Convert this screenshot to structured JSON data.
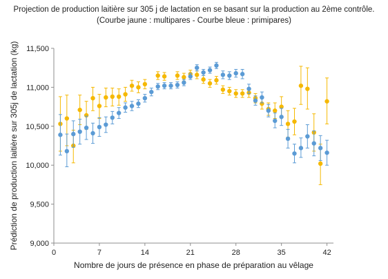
{
  "chart_data": {
    "type": "scatter",
    "title": "Projection de production laitière sur 305 j de lactation en se basant sur la production au 2ème contrôle.",
    "subtitle": "(Courbe jaune : multipares - Courbe bleue : primipares)",
    "xlabel": "Nombre de jours de présence en phase de préparation au vêlage",
    "ylabel": "Prédiction de production laitière sur 305j de lactation (kg)",
    "xlim": [
      0,
      43
    ],
    "ylim": [
      9000,
      11500
    ],
    "x_ticks": [
      0,
      7,
      14,
      21,
      28,
      35,
      42
    ],
    "y_ticks": [
      9000,
      9500,
      10000,
      10500,
      11000,
      11500
    ],
    "y_tick_labels": [
      "9,000",
      "9,500",
      "10,000",
      "10,500",
      "11,000",
      "11,500"
    ],
    "grid": false,
    "colors": {
      "multipares": "#f5b800",
      "primipares": "#5b9bd5",
      "axis": "#8c8c8c"
    },
    "series": [
      {
        "key": "multipares",
        "points": [
          {
            "x": 1,
            "y": 10530,
            "lo": 10180,
            "hi": 10880
          },
          {
            "x": 2,
            "y": 10600,
            "lo": 10250,
            "hi": 10900
          },
          {
            "x": 3,
            "y": 10250,
            "lo": 10030,
            "hi": 10450
          },
          {
            "x": 4,
            "y": 10710,
            "lo": 10520,
            "hi": 10900
          },
          {
            "x": 5,
            "y": 10640,
            "lo": 10460,
            "hi": 10820
          },
          {
            "x": 6,
            "y": 10860,
            "lo": 10700,
            "hi": 11000
          },
          {
            "x": 7,
            "y": 10760,
            "lo": 10600,
            "hi": 10910
          },
          {
            "x": 8,
            "y": 10870,
            "lo": 10750,
            "hi": 10990
          },
          {
            "x": 9,
            "y": 10880,
            "lo": 10760,
            "hi": 10990
          },
          {
            "x": 10,
            "y": 10880,
            "lo": 10770,
            "hi": 10980
          },
          {
            "x": 11,
            "y": 10910,
            "lo": 10820,
            "hi": 11000
          },
          {
            "x": 12,
            "y": 11020,
            "lo": 10950,
            "hi": 11090
          },
          {
            "x": 13,
            "y": 11000,
            "lo": 10930,
            "hi": 11070
          },
          {
            "x": 14,
            "y": 11040,
            "lo": 10980,
            "hi": 11100
          },
          {
            "x": 16,
            "y": 11150,
            "lo": 11100,
            "hi": 11200
          },
          {
            "x": 17,
            "y": 11140,
            "lo": 11090,
            "hi": 11190
          },
          {
            "x": 19,
            "y": 11150,
            "lo": 11100,
            "hi": 11200
          },
          {
            "x": 20,
            "y": 11130,
            "lo": 11080,
            "hi": 11180
          },
          {
            "x": 21,
            "y": 11170,
            "lo": 11120,
            "hi": 11220
          },
          {
            "x": 22,
            "y": 11160,
            "lo": 11110,
            "hi": 11210
          },
          {
            "x": 23,
            "y": 11100,
            "lo": 11050,
            "hi": 11150
          },
          {
            "x": 24,
            "y": 11050,
            "lo": 11000,
            "hi": 11100
          },
          {
            "x": 25,
            "y": 11090,
            "lo": 11040,
            "hi": 11140
          },
          {
            "x": 26,
            "y": 10970,
            "lo": 10920,
            "hi": 11020
          },
          {
            "x": 27,
            "y": 10950,
            "lo": 10900,
            "hi": 11000
          },
          {
            "x": 28,
            "y": 10920,
            "lo": 10870,
            "hi": 10970
          },
          {
            "x": 29,
            "y": 10920,
            "lo": 10870,
            "hi": 10970
          },
          {
            "x": 30,
            "y": 10930,
            "lo": 10870,
            "hi": 10990
          },
          {
            "x": 31,
            "y": 10860,
            "lo": 10800,
            "hi": 10920
          },
          {
            "x": 32,
            "y": 10790,
            "lo": 10720,
            "hi": 10860
          },
          {
            "x": 33,
            "y": 10720,
            "lo": 10640,
            "hi": 10800
          },
          {
            "x": 34,
            "y": 10700,
            "lo": 10600,
            "hi": 10800
          },
          {
            "x": 35,
            "y": 10750,
            "lo": 10620,
            "hi": 10880
          },
          {
            "x": 36,
            "y": 10530,
            "lo": 10360,
            "hi": 10700
          },
          {
            "x": 37,
            "y": 10560,
            "lo": 10390,
            "hi": 10730
          },
          {
            "x": 38,
            "y": 11020,
            "lo": 10780,
            "hi": 11270
          },
          {
            "x": 39,
            "y": 10980,
            "lo": 10720,
            "hi": 11250
          },
          {
            "x": 40,
            "y": 10420,
            "lo": 10180,
            "hi": 10660
          },
          {
            "x": 41,
            "y": 10020,
            "lo": 9750,
            "hi": 10270
          },
          {
            "x": 42,
            "y": 10820,
            "lo": 10530,
            "hi": 11120
          }
        ]
      },
      {
        "key": "primipares",
        "points": [
          {
            "x": 1,
            "y": 10390,
            "lo": 10130,
            "hi": 10650
          },
          {
            "x": 2,
            "y": 10180,
            "lo": 9980,
            "hi": 10400
          },
          {
            "x": 3,
            "y": 10400,
            "lo": 10230,
            "hi": 10570
          },
          {
            "x": 4,
            "y": 10430,
            "lo": 10270,
            "hi": 10590
          },
          {
            "x": 5,
            "y": 10480,
            "lo": 10330,
            "hi": 10630
          },
          {
            "x": 6,
            "y": 10410,
            "lo": 10280,
            "hi": 10540
          },
          {
            "x": 7,
            "y": 10490,
            "lo": 10370,
            "hi": 10610
          },
          {
            "x": 8,
            "y": 10520,
            "lo": 10420,
            "hi": 10620
          },
          {
            "x": 9,
            "y": 10610,
            "lo": 10530,
            "hi": 10690
          },
          {
            "x": 10,
            "y": 10670,
            "lo": 10600,
            "hi": 10740
          },
          {
            "x": 11,
            "y": 10740,
            "lo": 10680,
            "hi": 10800
          },
          {
            "x": 12,
            "y": 10760,
            "lo": 10700,
            "hi": 10820
          },
          {
            "x": 13,
            "y": 10790,
            "lo": 10740,
            "hi": 10840
          },
          {
            "x": 14,
            "y": 10860,
            "lo": 10810,
            "hi": 10910
          },
          {
            "x": 15,
            "y": 10940,
            "lo": 10890,
            "hi": 10990
          },
          {
            "x": 16,
            "y": 11010,
            "lo": 10970,
            "hi": 11050
          },
          {
            "x": 17,
            "y": 11020,
            "lo": 10980,
            "hi": 11060
          },
          {
            "x": 18,
            "y": 11020,
            "lo": 10980,
            "hi": 11060
          },
          {
            "x": 19,
            "y": 11030,
            "lo": 10990,
            "hi": 11070
          },
          {
            "x": 20,
            "y": 11060,
            "lo": 11020,
            "hi": 11100
          },
          {
            "x": 21,
            "y": 11140,
            "lo": 11100,
            "hi": 11180
          },
          {
            "x": 22,
            "y": 11250,
            "lo": 11210,
            "hi": 11290
          },
          {
            "x": 23,
            "y": 11190,
            "lo": 11150,
            "hi": 11230
          },
          {
            "x": 24,
            "y": 11220,
            "lo": 11180,
            "hi": 11260
          },
          {
            "x": 25,
            "y": 11280,
            "lo": 11240,
            "hi": 11320
          },
          {
            "x": 26,
            "y": 11160,
            "lo": 11110,
            "hi": 11210
          },
          {
            "x": 27,
            "y": 11150,
            "lo": 11100,
            "hi": 11200
          },
          {
            "x": 28,
            "y": 11180,
            "lo": 11130,
            "hi": 11230
          },
          {
            "x": 29,
            "y": 11170,
            "lo": 11110,
            "hi": 11230
          },
          {
            "x": 30,
            "y": 10980,
            "lo": 10920,
            "hi": 11040
          },
          {
            "x": 31,
            "y": 10830,
            "lo": 10770,
            "hi": 10890
          },
          {
            "x": 32,
            "y": 10870,
            "lo": 10800,
            "hi": 10940
          },
          {
            "x": 33,
            "y": 10700,
            "lo": 10620,
            "hi": 10780
          },
          {
            "x": 34,
            "y": 10570,
            "lo": 10480,
            "hi": 10670
          },
          {
            "x": 35,
            "y": 10620,
            "lo": 10510,
            "hi": 10730
          },
          {
            "x": 36,
            "y": 10340,
            "lo": 10220,
            "hi": 10460
          },
          {
            "x": 37,
            "y": 10150,
            "lo": 10030,
            "hi": 10270
          },
          {
            "x": 38,
            "y": 10220,
            "lo": 10100,
            "hi": 10350
          },
          {
            "x": 39,
            "y": 10370,
            "lo": 10220,
            "hi": 10520
          },
          {
            "x": 40,
            "y": 10280,
            "lo": 10120,
            "hi": 10440
          },
          {
            "x": 41,
            "y": 10220,
            "lo": 10060,
            "hi": 10380
          },
          {
            "x": 42,
            "y": 10160,
            "lo": 10000,
            "hi": 10320
          }
        ]
      }
    ]
  }
}
